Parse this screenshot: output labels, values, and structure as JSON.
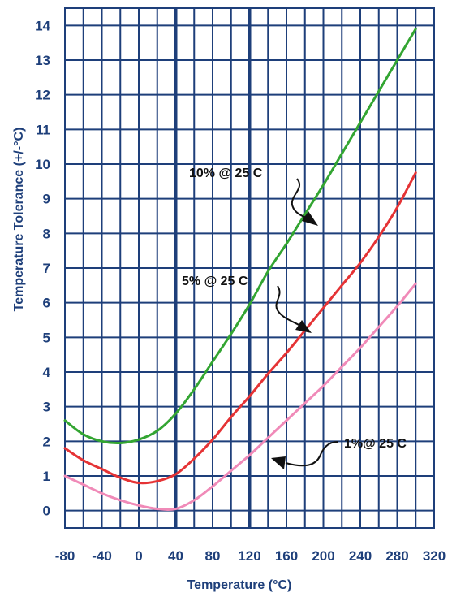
{
  "chart_data": {
    "type": "line",
    "title": "",
    "xlabel": "Temperature (°C)",
    "ylabel": "Temperature Tolerance (+/-°C)",
    "xlim": [
      -80,
      320
    ],
    "ylim": [
      -0.5,
      14.5
    ],
    "x_ticks": [
      "-80",
      "-40",
      "0",
      "40",
      "80",
      "120",
      "160",
      "200",
      "240",
      "280",
      "320"
    ],
    "y_ticks": [
      "0",
      "1",
      "2",
      "3",
      "4",
      "5",
      "6",
      "7",
      "8",
      "9",
      "10",
      "11",
      "12",
      "13",
      "14"
    ],
    "grid": true,
    "series": [
      {
        "color": "#33a532",
        "x": [
          -80,
          -60,
          -40,
          -20,
          0,
          20,
          40,
          60,
          80,
          100,
          120,
          140,
          160,
          180,
          200,
          220,
          240,
          260,
          280,
          300
        ],
        "values": [
          2.6,
          2.2,
          2.0,
          1.95,
          2.05,
          2.3,
          2.8,
          3.5,
          4.3,
          5.1,
          5.95,
          6.9,
          7.7,
          8.55,
          9.4,
          10.3,
          11.2,
          12.1,
          13.0,
          13.9
        ]
      },
      {
        "color": "#e53335",
        "x": [
          -80,
          -60,
          -40,
          -20,
          0,
          20,
          40,
          60,
          80,
          100,
          120,
          140,
          160,
          180,
          200,
          220,
          240,
          260,
          280,
          300
        ],
        "values": [
          1.8,
          1.45,
          1.2,
          0.95,
          0.8,
          0.85,
          1.05,
          1.5,
          2.05,
          2.7,
          3.3,
          3.95,
          4.55,
          5.2,
          5.85,
          6.5,
          7.15,
          7.9,
          8.75,
          9.75
        ]
      },
      {
        "color": "#f08ab8",
        "x": [
          -80,
          -60,
          -40,
          -20,
          0,
          20,
          40,
          60,
          80,
          100,
          120,
          140,
          160,
          180,
          200,
          220,
          240,
          260,
          280,
          300
        ],
        "values": [
          1.0,
          0.75,
          0.5,
          0.3,
          0.15,
          0.05,
          0.05,
          0.3,
          0.7,
          1.15,
          1.6,
          2.1,
          2.6,
          3.1,
          3.6,
          4.15,
          4.7,
          5.3,
          5.9,
          6.55
        ]
      }
    ],
    "annotations": [
      {
        "text": "10% @ 25 C"
      },
      {
        "text": "5% @ 25 C"
      },
      {
        "text": "1%@ 25 C"
      }
    ]
  }
}
